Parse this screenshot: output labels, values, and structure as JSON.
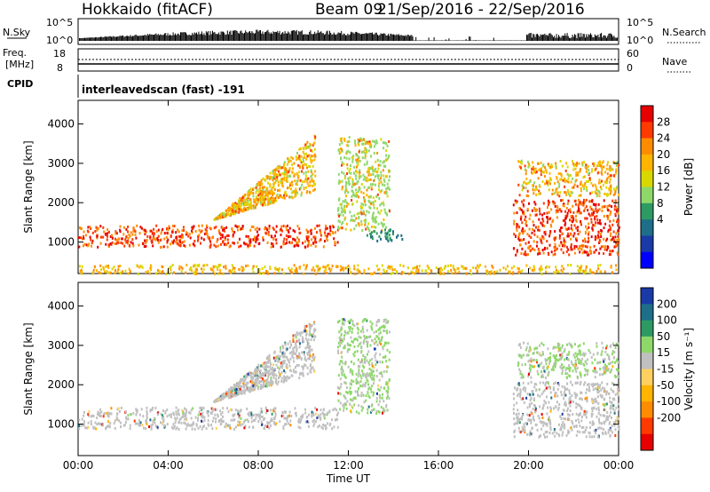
{
  "header": {
    "station": "Hokkaido (fitACF)",
    "beam": "Beam 09",
    "date_range": "21/Sep/2016 - 22/Sep/2016"
  },
  "top_panels": {
    "nsky_label": "N.Sky",
    "nsky_ticks": [
      "10^5",
      "10^0"
    ],
    "nsearch_label": "N.Search",
    "freq_label_1": "Freq.",
    "freq_label_2": "[MHz]",
    "freq_ticks": [
      "18",
      "8"
    ],
    "nave_ticks": [
      "60",
      "0"
    ],
    "nave_label": "Nave",
    "cpid_label": "CPID",
    "cpid_value": "interleavedscan (fast) -191"
  },
  "chart_data": [
    {
      "type": "heatmap",
      "name": "power",
      "ylabel": "Slant Range [km]",
      "xlabel": "",
      "x_ticks": [
        "00:00",
        "04:00",
        "08:00",
        "12:00",
        "16:00",
        "20:00",
        "00:00"
      ],
      "y_ticks": [
        1000,
        2000,
        3000,
        4000
      ],
      "ylim": [
        200,
        4600
      ],
      "xlim_hours": [
        0,
        24
      ],
      "colorbar": {
        "label": "Power [dB]",
        "ticks": [
          "28",
          "24",
          "20",
          "16",
          "12",
          "8",
          "4"
        ],
        "colors": [
          "#e60000",
          "#ff3a00",
          "#ff8c00",
          "#ffb400",
          "#d8d800",
          "#8ed86a",
          "#2e9a63",
          "#1e6e8a",
          "#1a3aa8",
          "#0000ff"
        ]
      },
      "regions": [
        {
          "desc": "main band",
          "x": [
            0,
            11.5
          ],
          "range": [
            900,
            1450
          ],
          "power": "28"
        },
        {
          "desc": "upper slant echoes",
          "x": [
            6,
            10.5
          ],
          "range": [
            1600,
            3400
          ],
          "power": "24"
        },
        {
          "desc": "12 UT rising feature",
          "x": [
            11.5,
            13.8
          ],
          "range": [
            1300,
            3700
          ],
          "power": "16"
        },
        {
          "desc": "13 UT patch",
          "x": [
            12.8,
            14.4
          ],
          "range": [
            1050,
            1350
          ],
          "power": "12"
        },
        {
          "desc": "late band",
          "x": [
            19.3,
            24
          ],
          "range": [
            700,
            2100
          ],
          "power": "24"
        },
        {
          "desc": "late upper band",
          "x": [
            19.5,
            24
          ],
          "range": [
            2200,
            3100
          ],
          "power": "20"
        },
        {
          "desc": "near range ground scatter",
          "x": [
            0,
            24
          ],
          "range": [
            220,
            450
          ],
          "power": "20"
        }
      ]
    },
    {
      "type": "heatmap",
      "name": "velocity",
      "ylabel": "Slant Range [km]",
      "xlabel": "Time UT",
      "x_ticks": [
        "00:00",
        "04:00",
        "08:00",
        "12:00",
        "16:00",
        "20:00",
        "00:00"
      ],
      "y_ticks": [
        1000,
        2000,
        3000,
        4000
      ],
      "ylim": [
        200,
        4600
      ],
      "xlim_hours": [
        0,
        24
      ],
      "colorbar": {
        "label": "Velocity [m s⁻¹]",
        "ticks": [
          "200",
          "100",
          "50",
          "15",
          "-15",
          "-50",
          "-100",
          "-200"
        ],
        "colors": [
          "#1a3aa8",
          "#1e6e8a",
          "#2e9a63",
          "#8ed86a",
          "#c0c0c0",
          "#ffd060",
          "#ffb400",
          "#ff8c00",
          "#ff3a00",
          "#e60000"
        ]
      },
      "regions": [
        {
          "desc": "ground scatter band",
          "x": [
            0,
            11.5
          ],
          "range": [
            900,
            1450
          ],
          "velocity": "-15..15"
        },
        {
          "desc": "upper slant",
          "x": [
            6,
            10.5
          ],
          "range": [
            1600,
            3400
          ],
          "velocity": "-15..15"
        },
        {
          "desc": "12 UT feature",
          "x": [
            11.5,
            13.8
          ],
          "range": [
            1300,
            3700
          ],
          "velocity": "15..50"
        },
        {
          "desc": "late band",
          "x": [
            19.3,
            24
          ],
          "range": [
            700,
            2100
          ],
          "velocity": "-15..15"
        },
        {
          "desc": "late upper",
          "x": [
            19.5,
            24
          ],
          "range": [
            2200,
            3100
          ],
          "velocity": "15..50"
        }
      ]
    }
  ]
}
